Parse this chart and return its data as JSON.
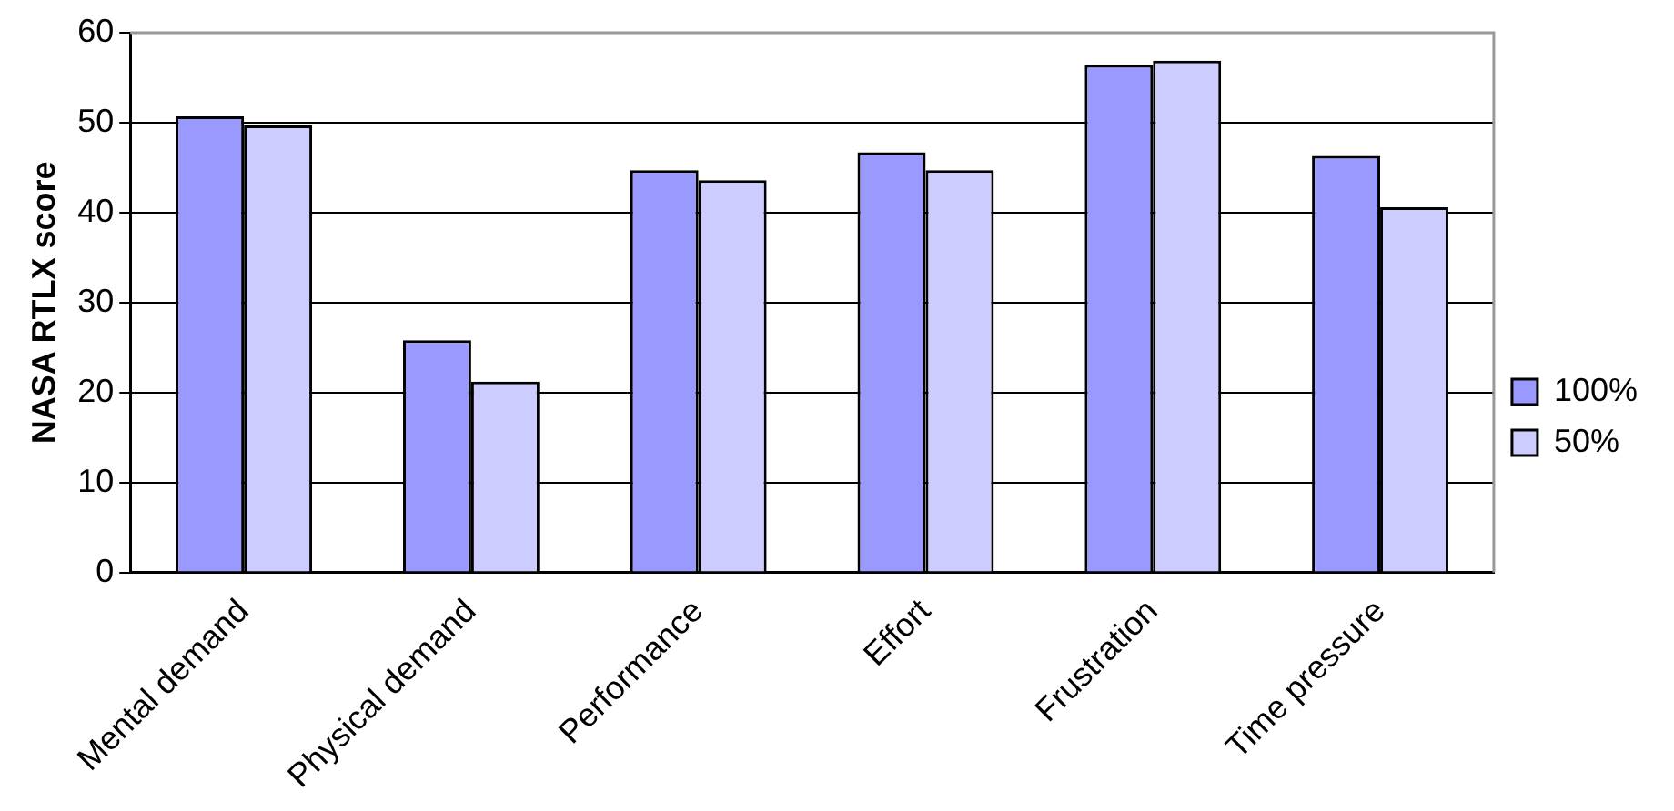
{
  "chart_data": {
    "type": "bar",
    "ylabel": "NASA RTLX score",
    "categories": [
      "Mental demand",
      "Physical demand",
      "Performance",
      "Effort",
      "Frustration",
      "Time pressure"
    ],
    "series": [
      {
        "name": "100%",
        "color": "#9999ff",
        "values": [
          50.7,
          25.8,
          44.7,
          46.7,
          56.4,
          46.3
        ]
      },
      {
        "name": "50%",
        "color": "#ccccff",
        "values": [
          49.7,
          21.2,
          43.6,
          44.7,
          56.9,
          40.6
        ]
      }
    ],
    "ylim": [
      0,
      60
    ],
    "yticks": [
      0,
      10,
      20,
      30,
      40,
      50,
      60
    ],
    "grid": "y",
    "legend": "right"
  }
}
